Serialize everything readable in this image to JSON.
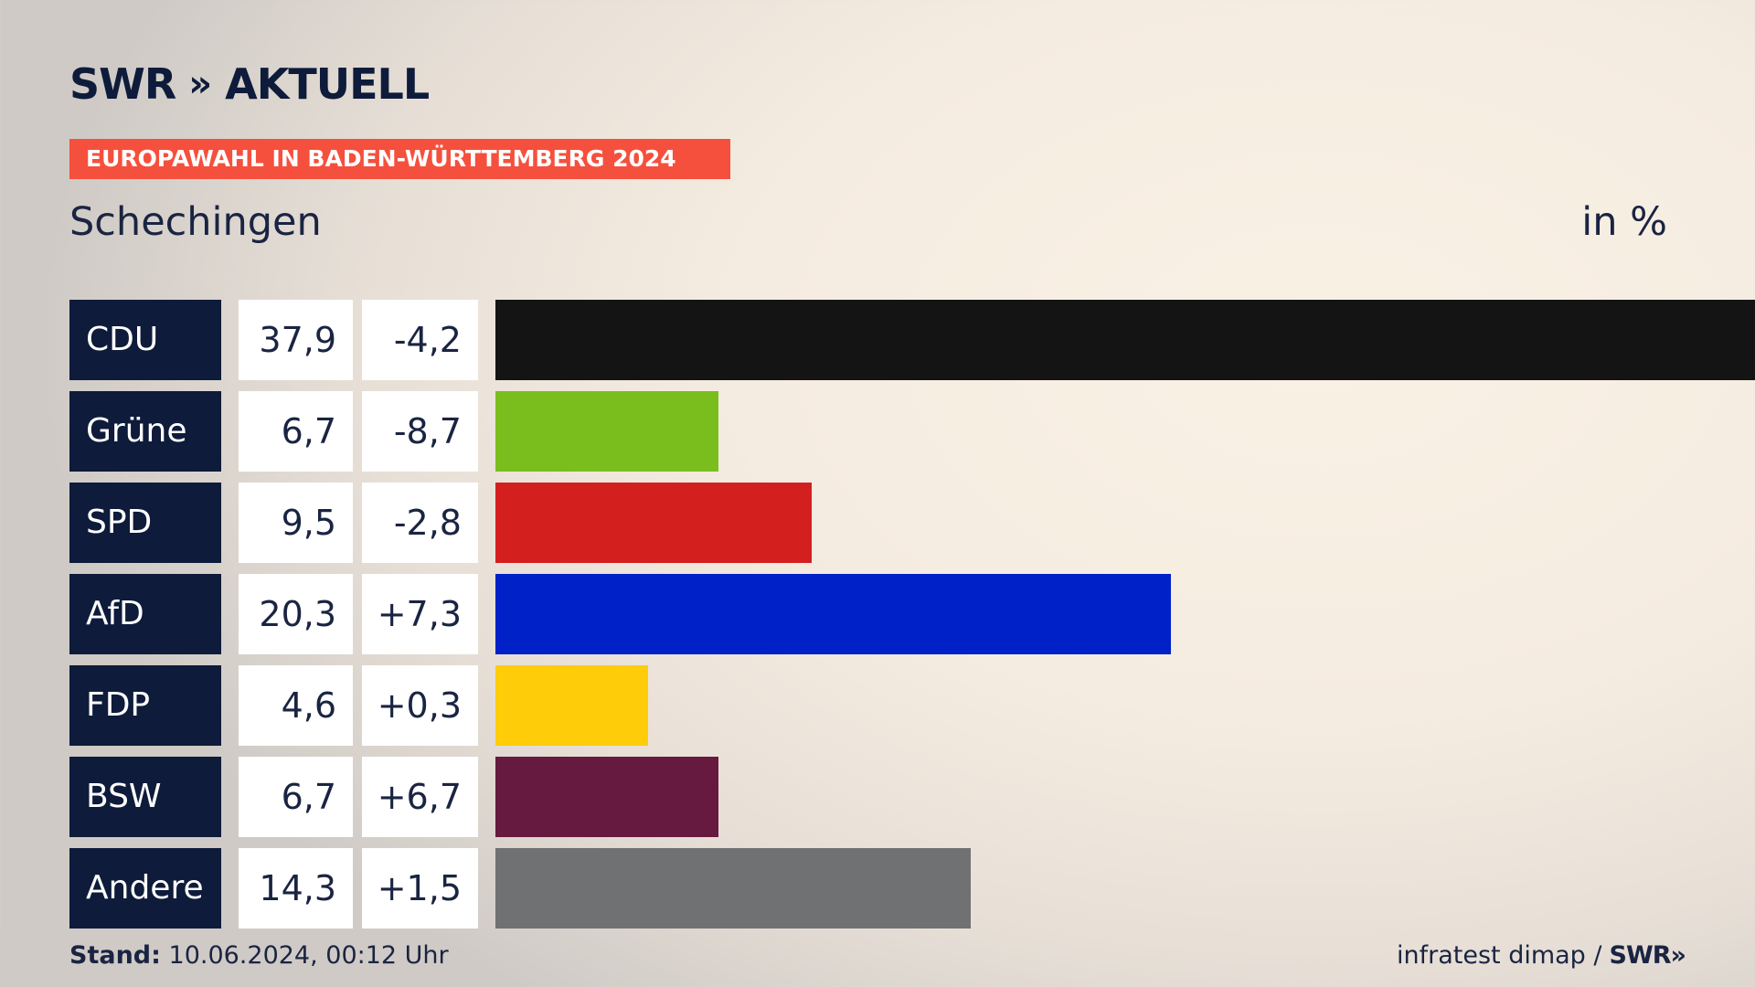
{
  "header": {
    "logo_text": "SWR",
    "logo_chevrons": "»",
    "logo_suffix": "AKTUELL",
    "banner": "EUROPAWAHL IN BADEN-WÜRTTEMBERG 2024",
    "place": "Schechingen",
    "unit": "in %"
  },
  "chart_data": {
    "type": "bar",
    "orientation": "horizontal",
    "title": "Schechingen",
    "unit_label": "in %",
    "categories": [
      "CDU",
      "Grüne",
      "SPD",
      "AfD",
      "FDP",
      "BSW",
      "Andere"
    ],
    "values": [
      37.9,
      6.7,
      9.5,
      20.3,
      4.6,
      6.7,
      14.3
    ],
    "value_labels": [
      "37,9",
      "6,7",
      "9,5",
      "20,3",
      "4,6",
      "6,7",
      "14,3"
    ],
    "changes": [
      -4.2,
      -8.7,
      -2.8,
      7.3,
      0.3,
      6.7,
      1.5
    ],
    "change_labels": [
      "-4,2",
      "-8,7",
      "-2,8",
      "+7,3",
      "+0,3",
      "+6,7",
      "+1,5"
    ],
    "colors": [
      "#141414",
      "#7abe1e",
      "#d41f1f",
      "#0021c8",
      "#ffcc0a",
      "#661a3f",
      "#707173"
    ],
    "xlim": [
      0,
      37.9
    ]
  },
  "footer": {
    "stand_label": "Stand:",
    "stand_value": "10.06.2024, 00:12 Uhr",
    "source": "infratest dimap /",
    "source_logo": "SWR",
    "source_logo_chevrons": "»"
  }
}
